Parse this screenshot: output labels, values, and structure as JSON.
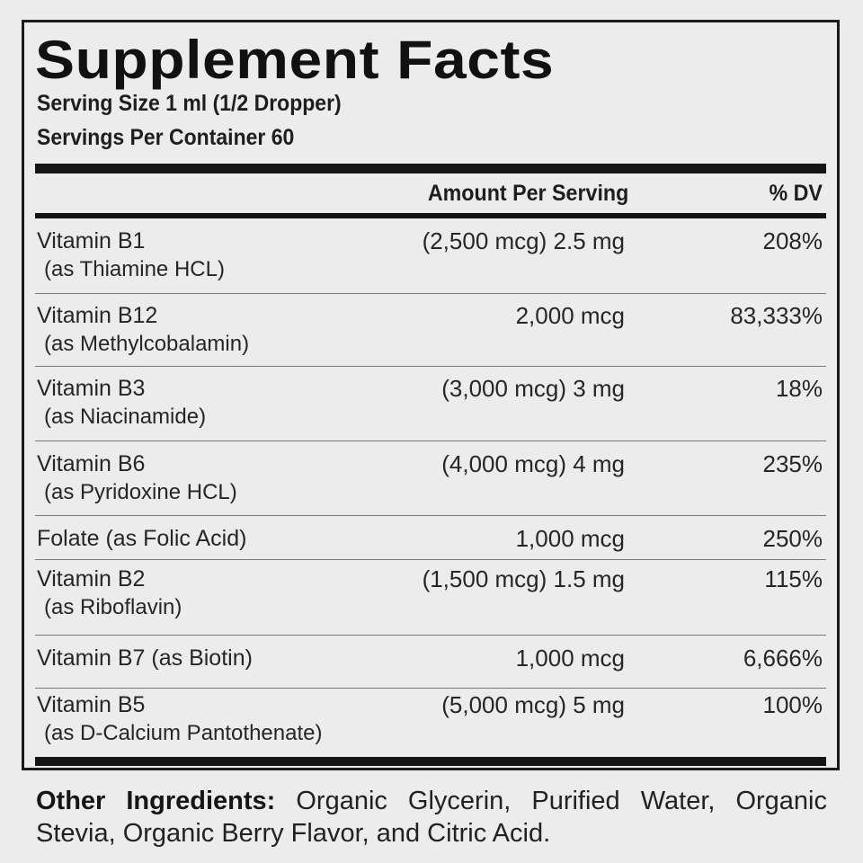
{
  "panel": {
    "title": "Supplement Facts",
    "serving_size": "Serving Size 1 ml (1/2 Dropper)",
    "servings_per_container": "Servings Per Container 60",
    "header": {
      "amount": "Amount Per Serving",
      "dv": "% DV"
    },
    "rows": [
      {
        "name": "Vitamin B1",
        "source": "(as Thiamine HCL)",
        "amount": "(2,500 mcg) 2.5 mg",
        "dv": "208%"
      },
      {
        "name": "Vitamin B12",
        "source": "(as Methylcobalamin)",
        "amount": "2,000 mcg",
        "dv": "83,333%"
      },
      {
        "name": "Vitamin B3",
        "source": "(as Niacinamide)",
        "amount": "(3,000 mcg) 3 mg",
        "dv": "18%"
      },
      {
        "name": "Vitamin B6",
        "source": "(as Pyridoxine HCL)",
        "amount": "(4,000 mcg) 4 mg",
        "dv": "235%"
      },
      {
        "name": "Folate",
        "source": "(as Folic Acid)",
        "amount": "1,000 mcg",
        "dv": "250%"
      },
      {
        "name": "Vitamin B2",
        "source": "(as Riboflavin)",
        "amount": "(1,500 mcg) 1.5 mg",
        "dv": "115%"
      },
      {
        "name": "Vitamin B7",
        "source": "(as Biotin)",
        "amount": "1,000 mcg",
        "dv": "6,666%"
      },
      {
        "name": "Vitamin B5",
        "source": "(as D-Calcium Pantothenate)",
        "amount": "(5,000 mcg) 5 mg",
        "dv": "100%"
      }
    ]
  },
  "other_ingredients": {
    "label": "Other Ingredients:",
    "text": "Organic Glycerin, Purified Water, Organic Stevia, Organic Berry Flavor, and Citric Acid."
  }
}
